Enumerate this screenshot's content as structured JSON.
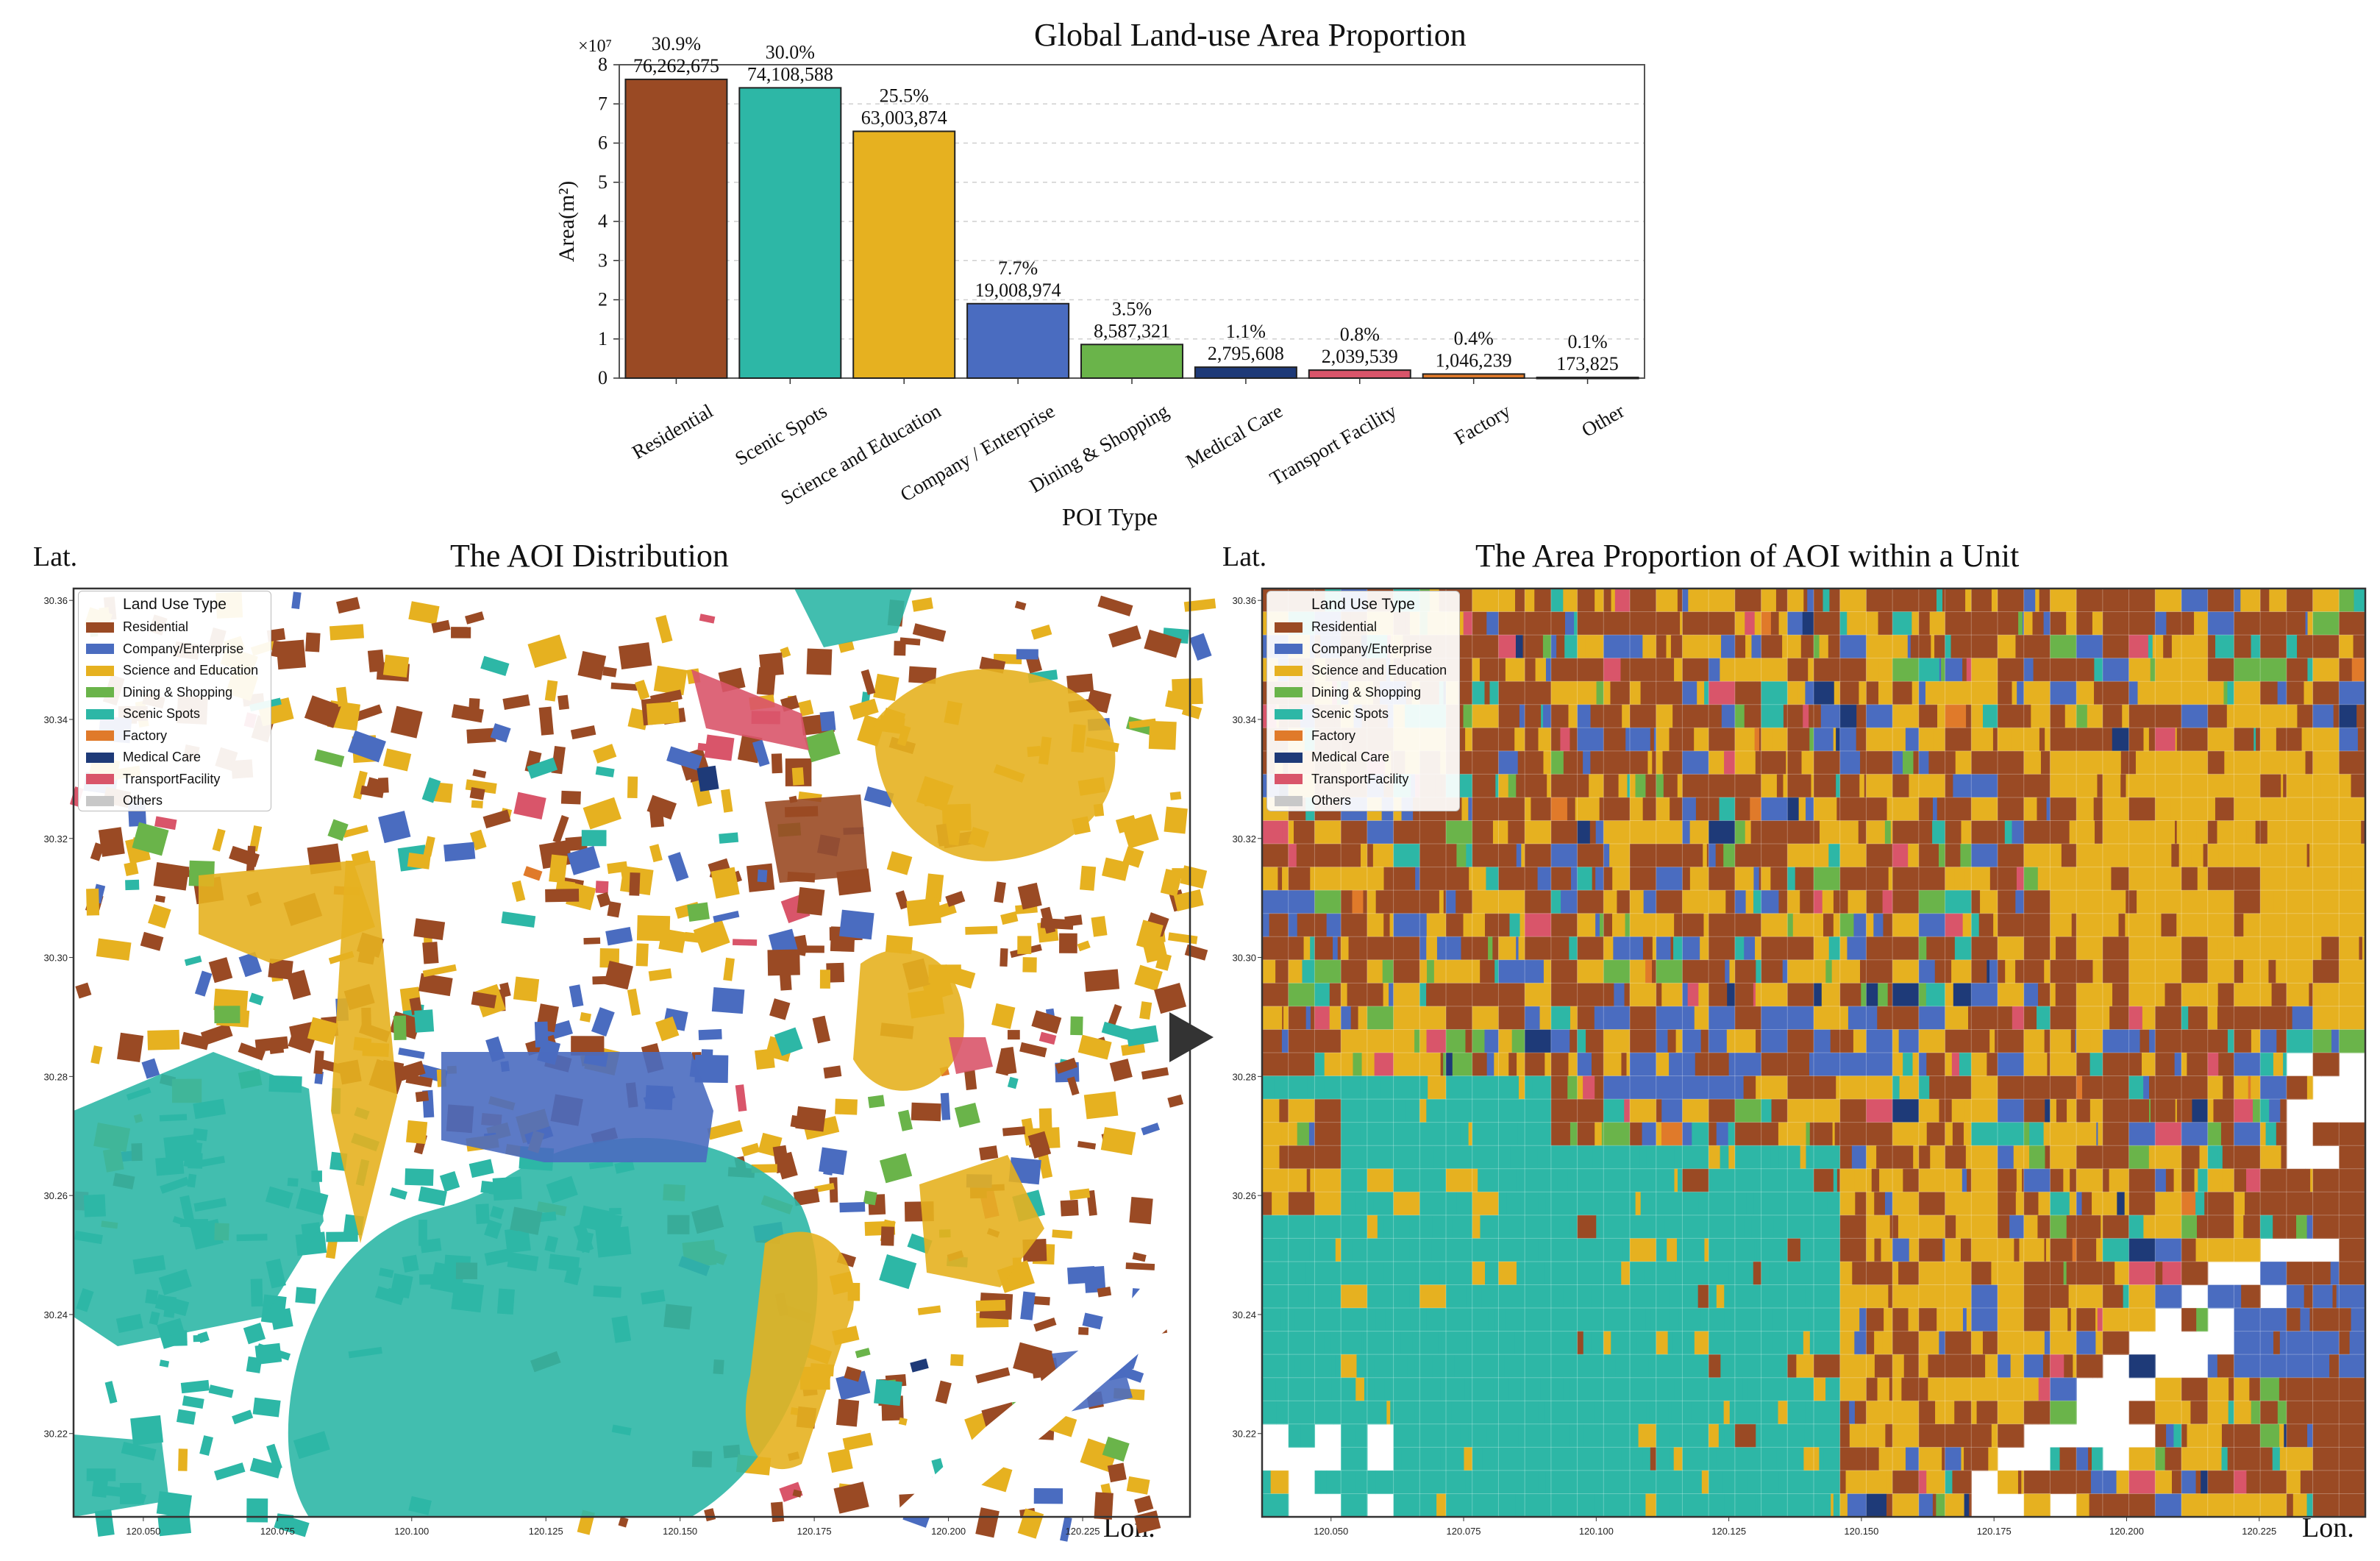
{
  "colors": {
    "residential": "#9a4a24",
    "company": "#4a6cc0",
    "science": "#e6b120",
    "dining": "#6ab44a",
    "scenic": "#2db7a6",
    "factory": "#e07a2a",
    "medical": "#1e3a78",
    "transport": "#d9556a",
    "others": "#c8c8c8"
  },
  "chart_data": [
    {
      "type": "bar",
      "title": "Global Land-use Area Proportion",
      "xlabel": "POI Type",
      "ylabel": "Area(m²)",
      "y_scale_label": "×10⁷",
      "ylim": [
        0,
        8
      ],
      "yticks": [
        "0",
        "1",
        "2",
        "3",
        "4",
        "5",
        "6",
        "7",
        "8"
      ],
      "grid": "horizontal dashed",
      "categories": [
        "Residential",
        "Scenic Spots",
        "Science and Education",
        "Company / Enterprise",
        "Dining & Shopping",
        "Medical Care",
        "Transport Facility",
        "Factory",
        "Other"
      ],
      "values": [
        76262675,
        74108588,
        63003874,
        19008974,
        8587321,
        2795608,
        2039539,
        1046239,
        173825
      ],
      "value_labels": [
        "76,262,675",
        "74,108,588",
        "63,003,874",
        "19,008,974",
        "8,587,321",
        "2,795,608",
        "2,039,539",
        "1,046,239",
        "173,825"
      ],
      "percent_labels": [
        "30.9%",
        "30.0%",
        "25.5%",
        "7.7%",
        "3.5%",
        "1.1%",
        "0.8%",
        "0.4%",
        "0.1%"
      ],
      "bar_colors": [
        "#9a4a24",
        "#2db7a6",
        "#e6b120",
        "#4a6cc0",
        "#6ab44a",
        "#1e3a78",
        "#d9556a",
        "#e07a2a",
        "#c8c8c8"
      ]
    },
    {
      "type": "map",
      "title": "The AOI Distribution",
      "ylabel": "Lat.",
      "xlabel": "Lon.",
      "xlim": [
        120.037,
        120.245
      ],
      "ylim": [
        30.206,
        30.362
      ],
      "xticks": [
        "120.050",
        "120.075",
        "120.100",
        "120.125",
        "120.150",
        "120.175",
        "120.200",
        "120.225"
      ],
      "yticks": [
        "30.36",
        "30.34",
        "30.32",
        "30.30",
        "30.28",
        "30.26",
        "30.24",
        "30.22"
      ],
      "legend_position": "top-left"
    },
    {
      "type": "heatmap",
      "title": "The Area Proportion of AOI within a Unit",
      "ylabel": "Lat.",
      "xlabel": "Lon.",
      "xlim": [
        120.037,
        120.245
      ],
      "ylim": [
        30.206,
        30.362
      ],
      "xticks": [
        "120.050",
        "120.075",
        "120.100",
        "120.125",
        "120.150",
        "120.175",
        "120.200",
        "120.225"
      ],
      "yticks": [
        "30.36",
        "30.34",
        "30.32",
        "30.30",
        "30.28",
        "30.26",
        "30.24",
        "30.22"
      ],
      "legend_position": "top-left"
    }
  ],
  "legend": {
    "title": "Land Use Type",
    "items": [
      {
        "label": "Residential",
        "key": "residential"
      },
      {
        "label": "Company/Enterprise",
        "key": "company"
      },
      {
        "label": "Science and Education",
        "key": "science"
      },
      {
        "label": "Dining & Shopping",
        "key": "dining"
      },
      {
        "label": "Scenic Spots",
        "key": "scenic"
      },
      {
        "label": "Factory",
        "key": "factory"
      },
      {
        "label": "Medical Care",
        "key": "medical"
      },
      {
        "label": "TransportFacility",
        "key": "transport"
      },
      {
        "label": "Others",
        "key": "others"
      }
    ]
  }
}
